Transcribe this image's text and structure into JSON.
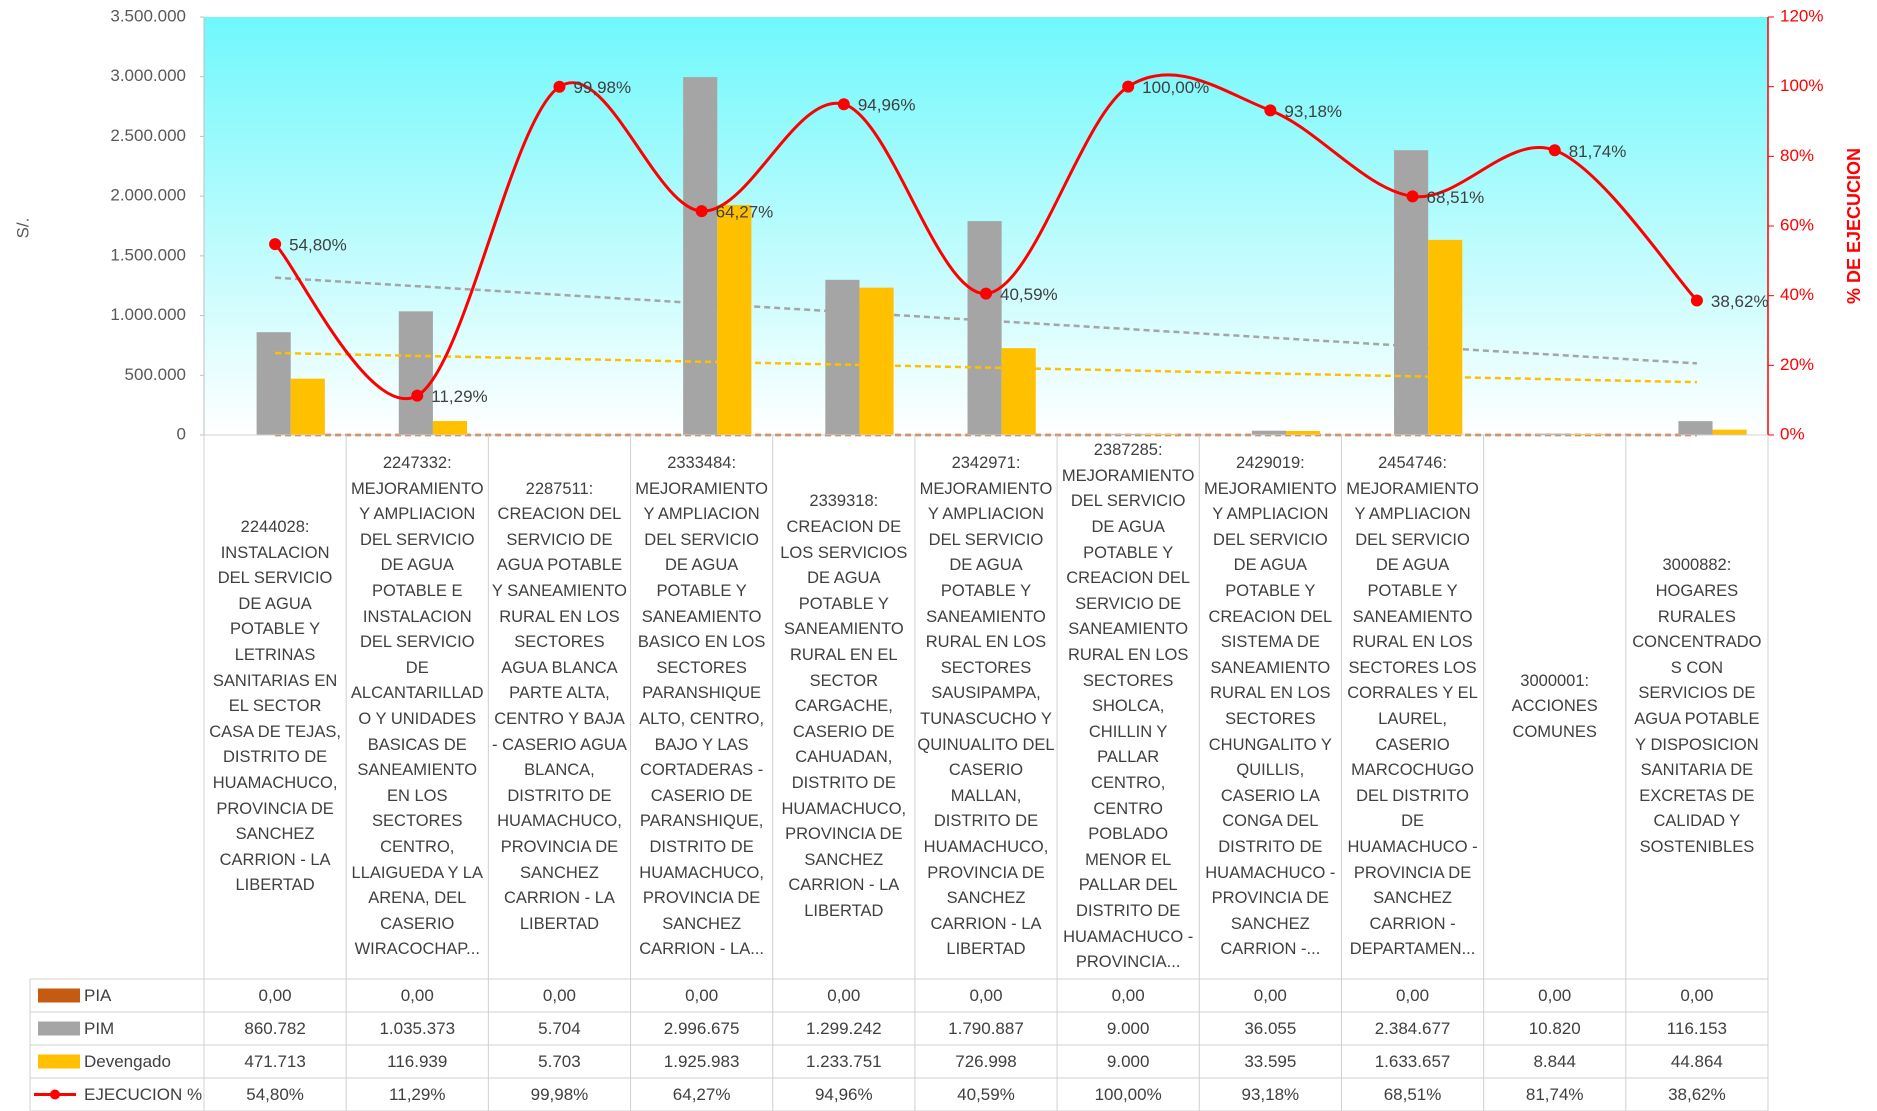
{
  "chart_data": {
    "type": "bar",
    "y_label": "S/.",
    "y2_label": "% DE EJECUCION",
    "categories": [
      "2244028: INSTALACION DEL SERVICIO DE AGUA POTABLE Y LETRINAS SANITARIAS EN EL SECTOR CASA DE TEJAS, DISTRITO DE HUAMACHUCO, PROVINCIA DE SANCHEZ CARRION - LA LIBERTAD",
      "2247332: MEJORAMIENTO Y AMPLIACION DEL SERVICIO DE AGUA POTABLE E INSTALACION DEL SERVICIO DE ALCANTARILLADO Y UNIDADES BASICAS DE SANEAMIENTO EN LOS SECTORES CENTRO, LLAIGUEDA Y LA ARENA, DEL CASERIO WIRACOCHAP...",
      "2287511: CREACION DEL SERVICIO DE AGUA POTABLE Y SANEAMIENTO RURAL EN LOS SECTORES AGUA BLANCA PARTE ALTA, CENTRO Y BAJA - CASERIO AGUA BLANCA, DISTRITO DE HUAMACHUCO, PROVINCIA DE SANCHEZ CARRION - LA LIBERTAD",
      "2333484: MEJORAMIENTO Y AMPLIACION DEL SERVICIO DE AGUA POTABLE Y SANEAMIENTO BASICO EN LOS SECTORES PARANSHIQUE ALTO, CENTRO, BAJO Y LAS CORTADERAS - CASERIO DE PARANSHIQUE, DISTRITO DE HUAMACHUCO, PROVINCIA DE SANCHEZ CARRION - LA...",
      "2339318: CREACION DE LOS SERVICIOS DE AGUA POTABLE Y SANEAMIENTO RURAL EN EL SECTOR CARGACHE, CASERIO DE CAHUADAN, DISTRITO DE HUAMACHUCO, PROVINCIA DE SANCHEZ CARRION - LA LIBERTAD",
      "2342971: MEJORAMIENTO Y AMPLIACION DEL SERVICIO DE AGUA POTABLE Y SANEAMIENTO RURAL EN LOS SECTORES SAUSIPAMPA, TUNASCUCHO Y QUINUALITO DEL CASERIO MALLAN, DISTRITO DE HUAMACHUCO, PROVINCIA DE SANCHEZ CARRION - LA LIBERTAD",
      "2387285: MEJORAMIENTO DEL SERVICIO DE AGUA POTABLE Y CREACION DEL SERVICIO DE SANEAMIENTO RURAL EN LOS SECTORES SHOLCA, CHILLIN Y PALLAR CENTRO, CENTRO POBLADO MENOR EL PALLAR DEL DISTRITO DE HUAMACHUCO - PROVINCIA...",
      "2429019: MEJORAMIENTO Y AMPLIACION DEL SERVICIO DE AGUA POTABLE Y CREACION DEL SISTEMA DE SANEAMIENTO RURAL EN LOS SECTORES CHUNGALITO Y QUILLIS, CASERIO LA CONGA DEL DISTRITO DE HUAMACHUCO - PROVINCIA DE SANCHEZ CARRION -...",
      "2454746: MEJORAMIENTO Y AMPLIACION DEL SERVICIO DE AGUA POTABLE Y SANEAMIENTO RURAL EN LOS SECTORES LOS CORRALES Y EL LAUREL, CASERIO MARCOCHUGO DEL DISTRITO DE HUAMACHUCO - PROVINCIA DE SANCHEZ CARRION - DEPARTAMEN...",
      "3000001: ACCIONES COMUNES",
      "3000882: HOGARES RURALES CONCENTRADOS CON SERVICIOS DE AGUA POTABLE Y DISPOSICION SANITARIA DE EXCRETAS DE CALIDAD Y SOSTENIBLES"
    ],
    "series": [
      {
        "name": "PIA",
        "color": "#c55a11",
        "values": [
          0,
          0,
          0,
          0,
          0,
          0,
          0,
          0,
          0,
          0,
          0
        ],
        "value_labels": [
          "0,00",
          "0,00",
          "0,00",
          "0,00",
          "0,00",
          "0,00",
          "0,00",
          "0,00",
          "0,00",
          "0,00",
          "0,00"
        ]
      },
      {
        "name": "PIM",
        "color": "#a5a5a5",
        "values": [
          860782,
          1035373,
          5704,
          2996675,
          1299242,
          1790887,
          9000,
          36055,
          2384677,
          10820,
          116153
        ],
        "value_labels": [
          "860.782",
          "1.035.373",
          "5.704",
          "2.996.675",
          "1.299.242",
          "1.790.887",
          "9.000",
          "36.055",
          "2.384.677",
          "10.820",
          "116.153"
        ]
      },
      {
        "name": "Devengado",
        "color": "#ffc000",
        "values": [
          471713,
          116939,
          5703,
          1925983,
          1233751,
          726998,
          9000,
          33595,
          1633657,
          8844,
          44864
        ],
        "value_labels": [
          "471.713",
          "116.939",
          "5.703",
          "1.925.983",
          "1.233.751",
          "726.998",
          "9.000",
          "33.595",
          "1.633.657",
          "8.844",
          "44.864"
        ]
      },
      {
        "name": "EJECUCION %",
        "color": "#ff0000",
        "type": "line",
        "axis": "y2",
        "values": [
          54.8,
          11.29,
          99.98,
          64.27,
          94.96,
          40.59,
          100.0,
          93.18,
          68.51,
          81.74,
          38.62
        ],
        "value_labels": [
          "54,80%",
          "11,29%",
          "99,98%",
          "64,27%",
          "94,96%",
          "40,59%",
          "100,00%",
          "93,18%",
          "68,51%",
          "81,74%",
          "38,62%"
        ]
      }
    ],
    "ylim": [
      0,
      3500000
    ],
    "yticks": [
      0,
      {
        "value": 500000,
        "label": "500.000"
      },
      {
        "value": 1000000,
        "label": "1.000.000"
      },
      {
        "value": 1500000,
        "label": "1.500.000"
      },
      {
        "value": 2000000,
        "label": "2.000.000"
      },
      {
        "value": 2500000,
        "label": "2.500.000"
      },
      {
        "value": 3000000,
        "label": "3.000.000"
      },
      {
        "value": 3500000,
        "label": "3.500.000"
      }
    ],
    "y2lim": [
      0,
      120
    ],
    "y2ticks": [
      {
        "value": 0,
        "label": "0%"
      },
      {
        "value": 20,
        "label": "20%"
      },
      {
        "value": 40,
        "label": "40%"
      },
      {
        "value": 60,
        "label": "60%"
      },
      {
        "value": 80,
        "label": "80%"
      },
      {
        "value": 100,
        "label": "100%"
      },
      {
        "value": 120,
        "label": "120%"
      }
    ],
    "trendlines": true,
    "data_table": true
  }
}
